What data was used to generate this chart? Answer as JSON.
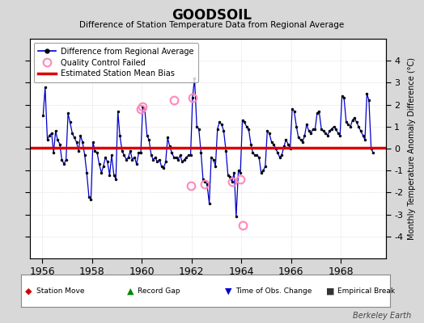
{
  "title": "GOODSOIL",
  "subtitle": "Difference of Station Temperature Data from Regional Average",
  "ylabel_right": "Monthly Temperature Anomaly Difference (°C)",
  "xlim": [
    1955.5,
    1969.8
  ],
  "ylim": [
    -5,
    5
  ],
  "yticks": [
    -4,
    -3,
    -2,
    -1,
    0,
    1,
    2,
    3,
    4
  ],
  "xticks": [
    1956,
    1958,
    1960,
    1962,
    1964,
    1966,
    1968
  ],
  "bias_value": 0.05,
  "background_color": "#d8d8d8",
  "plot_bg_color": "#ffffff",
  "line_color": "#0000cc",
  "bias_color": "#dd0000",
  "marker_color": "#000000",
  "qc_marker_color": "#ff88bb",
  "berkeley_earth_text": "Berkeley Earth",
  "data_x": [
    1956.04,
    1956.12,
    1956.21,
    1956.29,
    1956.38,
    1956.46,
    1956.54,
    1956.62,
    1956.71,
    1956.79,
    1956.88,
    1956.96,
    1957.04,
    1957.12,
    1957.21,
    1957.29,
    1957.38,
    1957.46,
    1957.54,
    1957.62,
    1957.71,
    1957.79,
    1957.88,
    1957.96,
    1958.04,
    1958.12,
    1958.21,
    1958.29,
    1958.38,
    1958.46,
    1958.54,
    1958.62,
    1958.71,
    1958.79,
    1958.88,
    1958.96,
    1959.04,
    1959.12,
    1959.21,
    1959.29,
    1959.38,
    1959.46,
    1959.54,
    1959.62,
    1959.71,
    1959.79,
    1959.88,
    1959.96,
    1960.04,
    1960.12,
    1960.21,
    1960.29,
    1960.38,
    1960.46,
    1960.54,
    1960.62,
    1960.71,
    1960.79,
    1960.88,
    1960.96,
    1961.04,
    1961.12,
    1961.21,
    1961.29,
    1961.38,
    1961.46,
    1961.54,
    1961.62,
    1961.71,
    1961.79,
    1961.88,
    1961.96,
    1962.04,
    1962.12,
    1962.21,
    1962.29,
    1962.38,
    1962.46,
    1962.54,
    1962.62,
    1962.71,
    1962.79,
    1962.88,
    1962.96,
    1963.04,
    1963.12,
    1963.21,
    1963.29,
    1963.38,
    1963.46,
    1963.54,
    1963.62,
    1963.71,
    1963.79,
    1963.88,
    1963.96,
    1964.04,
    1964.12,
    1964.21,
    1964.29,
    1964.38,
    1964.46,
    1964.54,
    1964.62,
    1964.71,
    1964.79,
    1964.88,
    1964.96,
    1965.04,
    1965.12,
    1965.21,
    1965.29,
    1965.38,
    1965.46,
    1965.54,
    1965.62,
    1965.71,
    1965.79,
    1965.88,
    1965.96,
    1966.04,
    1966.12,
    1966.21,
    1966.29,
    1966.38,
    1966.46,
    1966.54,
    1966.62,
    1966.71,
    1966.79,
    1966.88,
    1966.96,
    1967.04,
    1967.12,
    1967.21,
    1967.29,
    1967.38,
    1967.46,
    1967.54,
    1967.62,
    1967.71,
    1967.79,
    1967.88,
    1967.96,
    1968.04,
    1968.12,
    1968.21,
    1968.29,
    1968.38,
    1968.46,
    1968.54,
    1968.62,
    1968.71,
    1968.79,
    1968.88,
    1968.96,
    1969.04,
    1969.12,
    1969.21,
    1969.29
  ],
  "data_y": [
    1.5,
    2.8,
    0.4,
    0.6,
    0.7,
    -0.2,
    0.8,
    0.4,
    0.2,
    -0.5,
    -0.7,
    -0.5,
    1.6,
    1.2,
    0.7,
    0.5,
    0.3,
    -0.1,
    0.6,
    0.3,
    -0.3,
    -1.1,
    -2.2,
    -2.3,
    0.3,
    -0.1,
    -0.2,
    -0.7,
    -1.1,
    -0.8,
    -0.4,
    -0.6,
    -1.2,
    -0.3,
    -1.2,
    -1.4,
    1.7,
    0.6,
    -0.1,
    -0.3,
    -0.5,
    -0.4,
    -0.1,
    -0.5,
    -0.4,
    -0.7,
    -0.2,
    -0.2,
    1.9,
    1.8,
    0.6,
    0.4,
    -0.3,
    -0.5,
    -0.4,
    -0.6,
    -0.5,
    -0.8,
    -0.9,
    -0.6,
    0.5,
    0.1,
    -0.2,
    -0.4,
    -0.4,
    -0.5,
    -0.3,
    -0.6,
    -0.5,
    -0.4,
    -0.3,
    -0.3,
    2.3,
    3.2,
    1.0,
    0.9,
    -0.2,
    -1.4,
    -1.5,
    -1.6,
    -2.5,
    -0.4,
    -0.5,
    -0.8,
    0.9,
    1.2,
    1.1,
    0.8,
    -0.1,
    -1.2,
    -1.3,
    -1.5,
    -1.1,
    -3.1,
    -1.0,
    -1.1,
    1.3,
    1.2,
    1.0,
    0.9,
    0.2,
    -0.2,
    -0.3,
    -0.3,
    -0.4,
    -1.1,
    -1.0,
    -0.8,
    0.8,
    0.7,
    0.3,
    0.2,
    0.0,
    -0.2,
    -0.4,
    -0.3,
    0.1,
    0.4,
    0.2,
    0.0,
    1.8,
    1.7,
    1.0,
    0.5,
    0.4,
    0.3,
    0.6,
    1.1,
    0.8,
    0.7,
    0.9,
    0.9,
    1.6,
    1.7,
    0.9,
    0.8,
    0.7,
    0.6,
    0.8,
    0.9,
    1.0,
    0.9,
    0.7,
    0.6,
    2.4,
    2.3,
    1.2,
    1.1,
    1.0,
    1.3,
    1.4,
    1.2,
    1.0,
    0.8,
    0.6,
    0.4,
    2.5,
    2.2,
    0.0,
    -0.2
  ],
  "qc_x": [
    1959.96,
    1960.04,
    1961.29,
    1961.96,
    1962.04,
    1962.54,
    1963.62,
    1963.96,
    1964.04
  ],
  "qc_y": [
    1.8,
    1.9,
    2.2,
    -1.7,
    2.3,
    -1.6,
    -1.5,
    -1.4,
    -3.5
  ],
  "legend_items": [
    {
      "label": "Difference from Regional Average",
      "type": "line"
    },
    {
      "label": "Quality Control Failed",
      "type": "qc"
    },
    {
      "label": "Estimated Station Mean Bias",
      "type": "bias"
    }
  ],
  "bottom_legend": [
    {
      "symbol": "◆",
      "color": "#cc0000",
      "label": "Station Move"
    },
    {
      "symbol": "▲",
      "color": "#008800",
      "label": "Record Gap"
    },
    {
      "symbol": "▼",
      "color": "#0000cc",
      "label": "Time of Obs. Change"
    },
    {
      "symbol": "■",
      "color": "#333333",
      "label": "Empirical Break"
    }
  ]
}
